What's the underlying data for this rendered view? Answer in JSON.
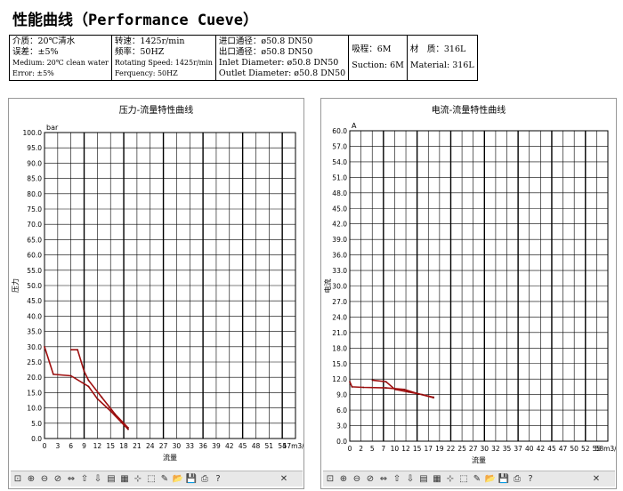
{
  "page": {
    "title": "性能曲线（Performance Cueve）"
  },
  "spec": {
    "medium_label": "介质：20℃清水",
    "error_label": "误差：±5%",
    "medium_en": "Medium: 20℃ clean water",
    "error_en": "Error: ±5%",
    "speed_label": "转速：1425r/min",
    "freq_label": "频率：50HZ",
    "speed_en": "Rotating Speed: 1425r/min",
    "freq_en": "Ferquency: 50HZ",
    "inlet_label": "进口通径：ø50.8 DN50",
    "outlet_label": "出口通径：ø50.8 DN50",
    "inlet_en": "Inlet Diameter: ø50.8 DN50",
    "outlet_en": "Outlet Diameter: ø50.8 DN50",
    "suction_label": "吸程：6M",
    "suction_en": "Suction: 6M",
    "material_label": "材　质：316L",
    "material_en": "Material: 316L"
  },
  "toolbar": {
    "icons": [
      "zoom-fit-icon",
      "zoom-in-icon",
      "zoom-out-icon",
      "zoom-reset-icon",
      "pan-horizontal-icon",
      "pan-up-icon",
      "pan-down-icon",
      "data-icon",
      "table-icon",
      "crosshair-icon",
      "select-icon",
      "edit-icon",
      "open-icon",
      "save-icon",
      "print-icon",
      "help-icon",
      "close-icon"
    ],
    "glyphs": [
      "⊡",
      "⊕",
      "⊖",
      "⊘",
      "⇔",
      "⇧",
      "⇩",
      "▤",
      "▦",
      "⊹",
      "⬚",
      "✎",
      "📂",
      "💾",
      "⎙",
      "?",
      "✕"
    ]
  },
  "chart_data": [
    {
      "type": "line",
      "title": "压力-流量特性曲线",
      "xlabel": "流量",
      "ylabel": "压力",
      "unit_y": "bar",
      "unit_x": "m3/h",
      "xlim": [
        0,
        57
      ],
      "ylim": [
        0,
        100
      ],
      "x_ticks": [
        "0",
        "3",
        "6",
        "9",
        "12",
        "15",
        "18",
        "21",
        "24",
        "27",
        "30",
        "33",
        "36",
        "39",
        "42",
        "45",
        "48",
        "51",
        "54",
        "57m3/h"
      ],
      "y_ticks": [
        "0.0",
        "5.0",
        "10.0",
        "15.0",
        "20.0",
        "25.0",
        "30.0",
        "35.0",
        "40.0",
        "45.0",
        "50.0",
        "55.0",
        "60.0",
        "65.0",
        "70.0",
        "75.0",
        "80.0",
        "85.0",
        "90.0",
        "95.0",
        "100.0"
      ],
      "grid": true,
      "series": [
        {
          "x": [
            0,
            2,
            6,
            10,
            12,
            15,
            19
          ],
          "y": [
            30,
            21,
            20.5,
            17,
            13,
            9,
            3
          ]
        },
        {
          "x": [
            6,
            7.5,
            9,
            10,
            13,
            16,
            19
          ],
          "y": [
            29,
            29,
            22,
            19,
            13.5,
            8,
            3.5
          ]
        }
      ]
    },
    {
      "type": "line",
      "title": "电流-流量特性曲线",
      "xlabel": "流量",
      "ylabel": "电流",
      "unit_y": "A",
      "unit_x": "m3/h",
      "xlim": [
        0,
        57
      ],
      "ylim": [
        0,
        60
      ],
      "x_ticks": [
        "0",
        "2",
        "5",
        "7",
        "10",
        "12",
        "15",
        "17",
        "19",
        "22",
        "25",
        "27",
        "30",
        "32",
        "35",
        "37",
        "40",
        "42",
        "45",
        "47",
        "50",
        "52",
        "55",
        "58m3/h"
      ],
      "y_ticks": [
        "0.0",
        "3.0",
        "6.0",
        "9.0",
        "12.0",
        "15.0",
        "18.0",
        "21.0",
        "24.0",
        "27.0",
        "30.0",
        "33.0",
        "36.0",
        "39.0",
        "42.0",
        "45.0",
        "48.0",
        "51.0",
        "54.0",
        "57.0",
        "60.0"
      ],
      "grid": true,
      "series": [
        {
          "x": [
            0,
            0.5,
            3,
            8,
            12,
            15,
            18.5
          ],
          "y": [
            11.5,
            10.5,
            10.4,
            10.3,
            10,
            9.2,
            8.4
          ]
        },
        {
          "x": [
            5,
            8,
            10,
            13,
            16,
            18.5
          ],
          "y": [
            11.8,
            11.5,
            10,
            9.5,
            9,
            8.5
          ]
        }
      ]
    }
  ]
}
